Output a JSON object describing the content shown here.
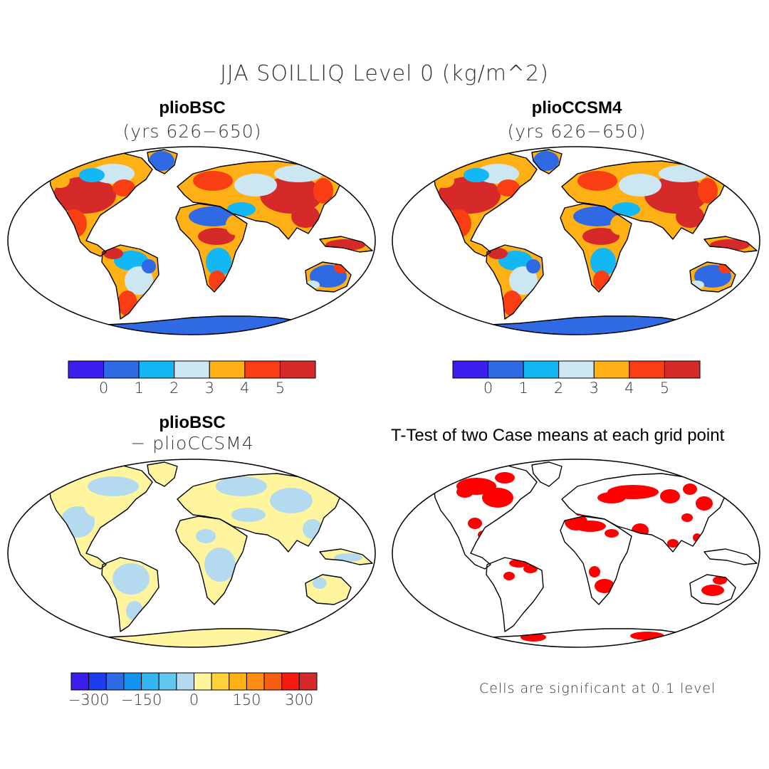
{
  "figure": {
    "title": "JJA SOILLIQ Level 0 (kg/m^2)"
  },
  "panels": [
    {
      "id": "plioBSC",
      "title": "plioBSC",
      "subtitle": "(yrs 626−650)",
      "field": "absolute",
      "dominant_land_colors": [
        "#d62a2a",
        "#f83e12",
        "#ffb014",
        "#cce7f2",
        "#12b7f4",
        "#2f6ae4"
      ]
    },
    {
      "id": "plioCCSM4",
      "title": "plioCCSM4",
      "subtitle": "(yrs 626−650)",
      "field": "absolute",
      "dominant_land_colors": [
        "#d62a2a",
        "#f83e12",
        "#ffb014",
        "#cce7f2",
        "#12b7f4",
        "#2f6ae4"
      ]
    },
    {
      "id": "difference",
      "title": "plioBSC",
      "subtitle": "− plioCCSM4",
      "field": "difference",
      "dominant_land_colors": [
        "#fff59f",
        "#b4daef"
      ]
    },
    {
      "id": "ttest",
      "title": "T-Test of two Case means at each grid point",
      "note": "Cells are significant at 0.1 level",
      "field": "significance",
      "significant_color": "#ff0000"
    }
  ],
  "colorbars": {
    "absolute": {
      "colors": [
        "#3a1eee",
        "#2f6ae4",
        "#12b7f4",
        "#cce7f2",
        "#ffb014",
        "#f83e12",
        "#d62a2a"
      ],
      "labels": [
        "0",
        "1",
        "2",
        "3",
        "4",
        "5"
      ]
    },
    "difference": {
      "colors": [
        "#3a1eee",
        "#1e3df0",
        "#2f6ae4",
        "#1293f2",
        "#35b6f0",
        "#63c8f0",
        "#b4daef",
        "#fff59f",
        "#ffd23c",
        "#ffb014",
        "#ff8a14",
        "#f85e12",
        "#f51b10",
        "#d62a2a"
      ],
      "labels": [
        "−300",
        "−150",
        "0",
        "150",
        "300"
      ]
    }
  }
}
